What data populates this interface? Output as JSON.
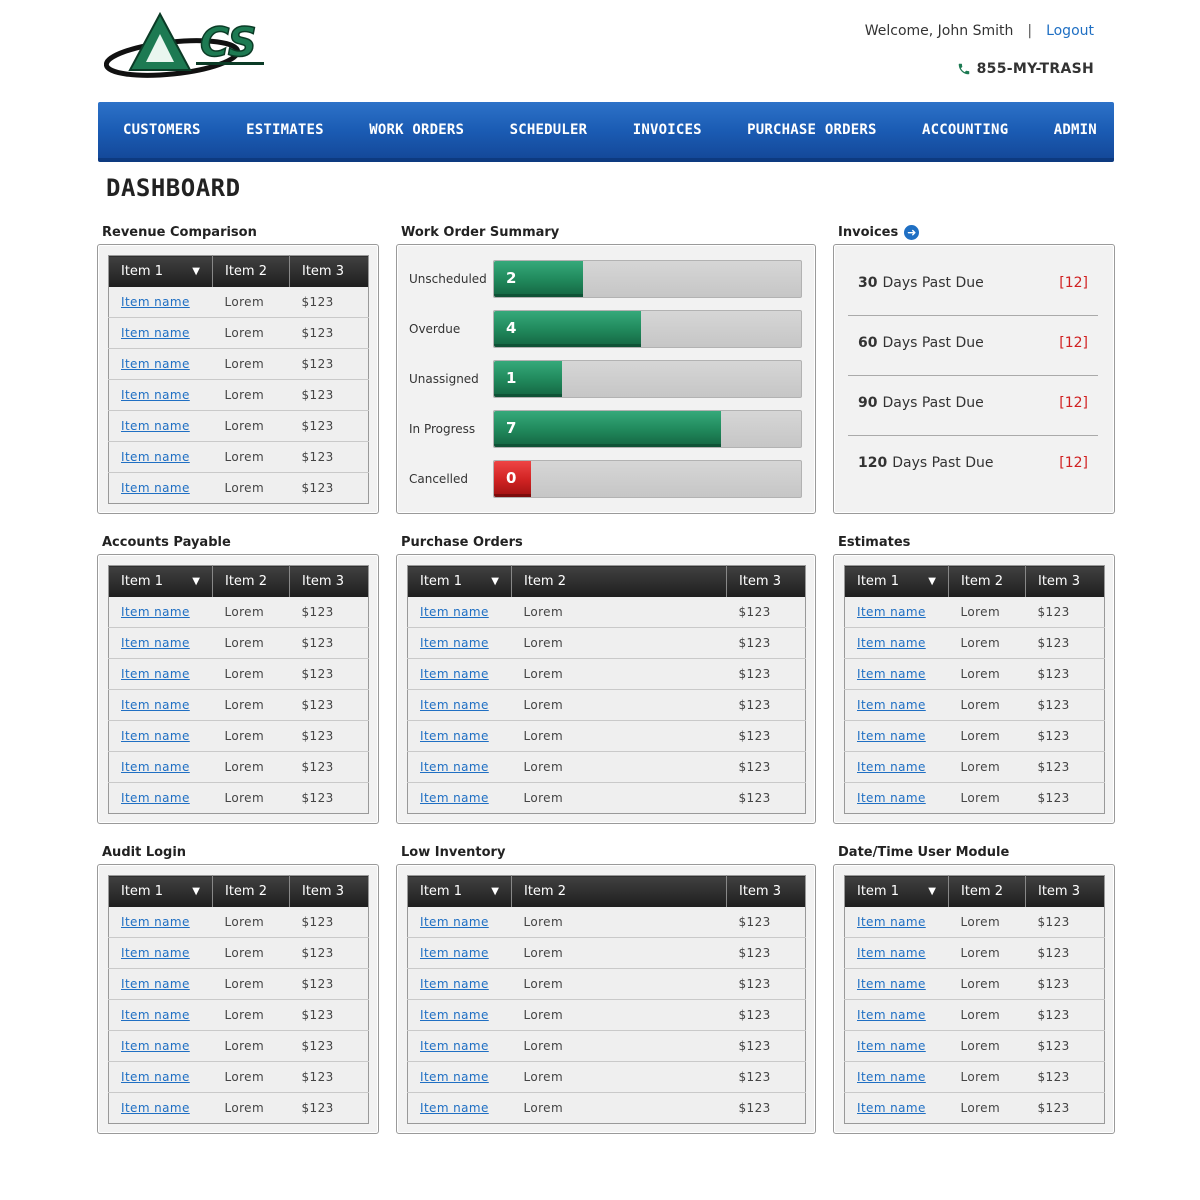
{
  "header": {
    "logo_text": "ACS",
    "welcome": "Welcome, John Smith",
    "separator": "|",
    "logout": "Logout",
    "phone": "855-MY-TRASH"
  },
  "nav": [
    "CUSTOMERS",
    "ESTIMATES",
    "WORK ORDERS",
    "SCHEDULER",
    "INVOICES",
    "PURCHASE ORDERS",
    "ACCOUNTING",
    "ADMIN"
  ],
  "page_title": "DASHBOARD",
  "colors": {
    "nav_blue": "#1b5cb4",
    "link_blue": "#1f6fc3",
    "bar_green": "#218a5d",
    "bar_red": "#d22424",
    "alert_red": "#d02020"
  },
  "table_headers": [
    "Item 1",
    "Item 2",
    "Item 3"
  ],
  "table_row": {
    "name": "Item name",
    "col2": "Lorem",
    "col3": "$123"
  },
  "panels": {
    "revenue": "Revenue Comparison",
    "work_orders": "Work Order Summary",
    "invoices": "Invoices",
    "accounts_payable": "Accounts Payable",
    "purchase_orders": "Purchase Orders",
    "estimates": "Estimates",
    "audit_login": "Audit Login",
    "low_inventory": "Low Inventory",
    "datetime": "Date/Time User Module"
  },
  "work_order_summary": [
    {
      "label": "Unscheduled",
      "value": "2",
      "fill": 0.29,
      "color": "green"
    },
    {
      "label": "Overdue",
      "value": "4",
      "fill": 0.48,
      "color": "green"
    },
    {
      "label": "Unassigned",
      "value": "1",
      "fill": 0.22,
      "color": "green"
    },
    {
      "label": "In Progress",
      "value": "7",
      "fill": 0.74,
      "color": "green"
    },
    {
      "label": "Cancelled",
      "value": "0",
      "fill": 0.12,
      "color": "red"
    }
  ],
  "invoices": [
    {
      "days": "30",
      "label": "Days Past Due",
      "count": "[12]"
    },
    {
      "days": "60",
      "label": "Days Past Due",
      "count": "[12]"
    },
    {
      "days": "90",
      "label": "Days Past Due",
      "count": "[12]"
    },
    {
      "days": "120",
      "label": "Days Past Due",
      "count": "[12]"
    }
  ]
}
